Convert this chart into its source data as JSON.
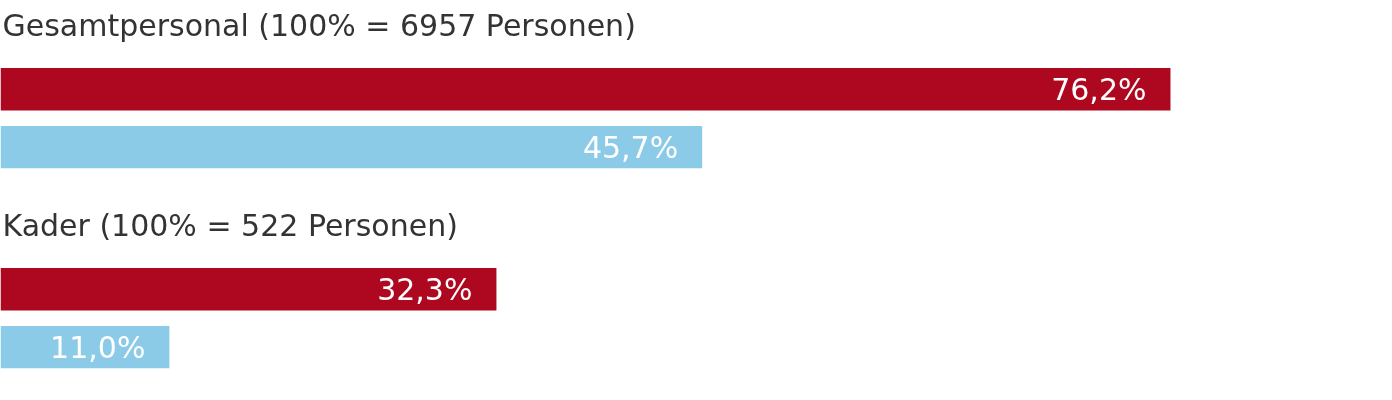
{
  "chart_data": [
    {
      "type": "bar",
      "orientation": "horizontal",
      "title": "Gesamtpersonal (100% = 6957 Personen)",
      "categories": [
        null
      ],
      "tick_labels": false,
      "series": [
        {
          "color": "#ae0820",
          "values": [
            76.2
          ],
          "value_labels": [
            "76,2%"
          ]
        },
        {
          "color": "#8ccbe8",
          "values": [
            45.7
          ],
          "value_labels": [
            "45,7%"
          ]
        }
      ]
    },
    {
      "type": "bar",
      "orientation": "horizontal",
      "title": "Kader (100% = 522 Personen)",
      "categories": [
        null
      ],
      "tick_labels": false,
      "series": [
        {
          "color": "#ae0820",
          "values": [
            32.3
          ],
          "value_labels": [
            "32,3%"
          ]
        },
        {
          "color": "#8ccbe8",
          "values": [
            11.0
          ],
          "value_labels": [
            "11,0%"
          ]
        }
      ]
    }
  ]
}
